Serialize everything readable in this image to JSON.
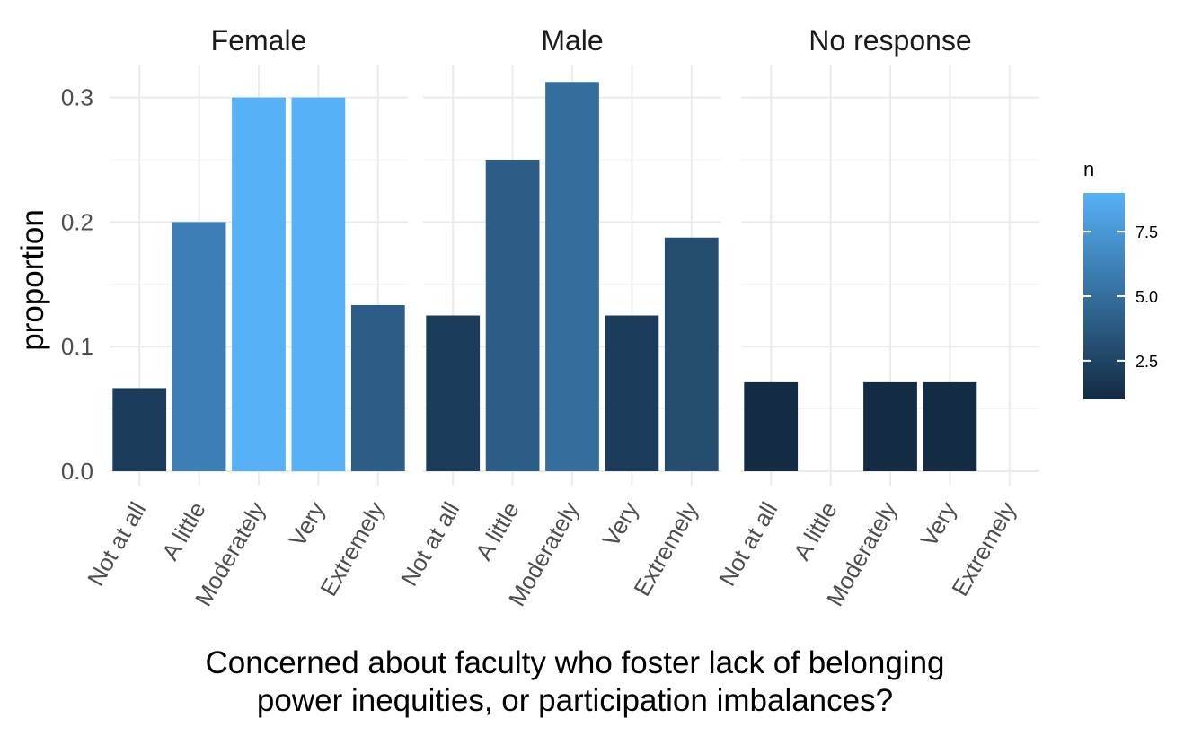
{
  "chart_data": {
    "type": "bar",
    "facets": [
      "Female",
      "Male",
      "No response"
    ],
    "categories": [
      "Not at all",
      "A little",
      "Moderately",
      "Very",
      "Extremely"
    ],
    "series": [
      {
        "facet": "Female",
        "proportion": [
          0.0667,
          0.2,
          0.3,
          0.3,
          0.1333
        ],
        "n": [
          2,
          6,
          9,
          9,
          4
        ]
      },
      {
        "facet": "Male",
        "proportion": [
          0.125,
          0.25,
          0.3125,
          0.125,
          0.1875
        ],
        "n": [
          2,
          4,
          5,
          2,
          3
        ]
      },
      {
        "facet": "No response",
        "proportion": [
          0.0714,
          null,
          0.0714,
          0.0714,
          null
        ],
        "n": [
          1,
          null,
          1,
          1,
          null
        ]
      }
    ],
    "ylabel": "proportion",
    "xlabel_lines": [
      "Concerned about faculty who foster lack of belonging",
      "power inequities, or participation imbalances?"
    ],
    "ylim": [
      0,
      0.32
    ],
    "y_ticks": [
      "0.0",
      "0.1",
      "0.2",
      "0.3"
    ],
    "y_tick_values": [
      0,
      0.1,
      0.2,
      0.3
    ],
    "grid": true,
    "legend": {
      "title": "n",
      "position": "right",
      "ticks": [
        "2.5",
        "5.0",
        "7.5"
      ],
      "tick_values": [
        2.5,
        5.0,
        7.5
      ],
      "range": [
        1,
        9
      ],
      "color_low": "#132B43",
      "color_high": "#56B1F7"
    }
  }
}
